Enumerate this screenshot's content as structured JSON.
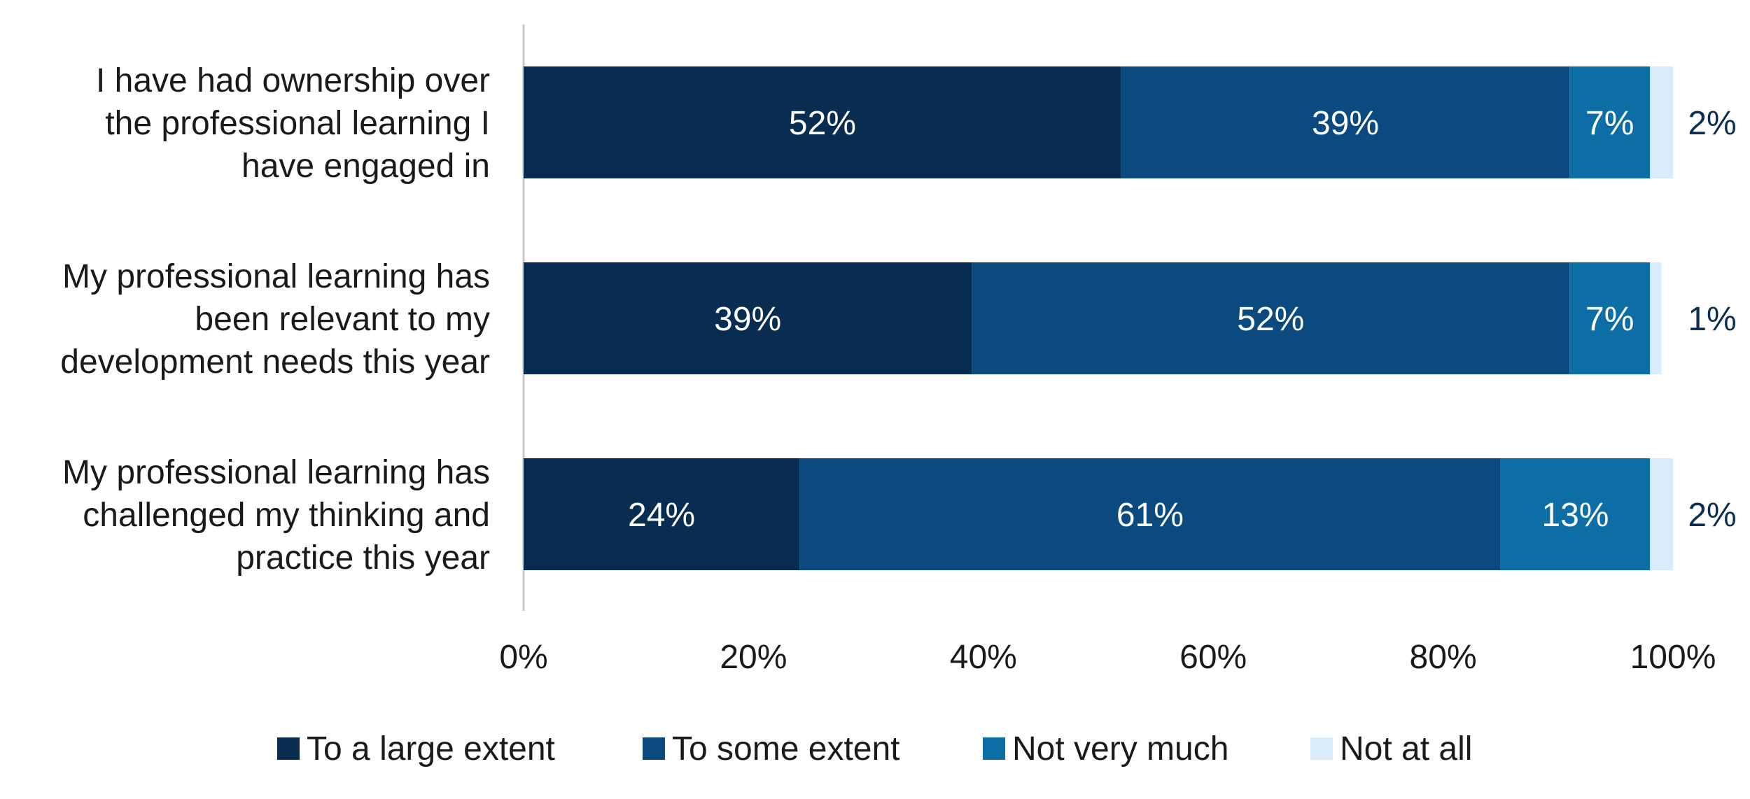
{
  "chart_data": {
    "type": "bar",
    "orientation": "horizontal",
    "stacked": true,
    "categories": [
      "I have had ownership over the professional learning I have engaged in",
      "My professional learning has been relevant to my development needs this year",
      "My professional learning has challenged my thinking and practice this year"
    ],
    "category_lines": [
      [
        "I have had ownership over",
        "the professional learning I",
        "have engaged in"
      ],
      [
        "My professional learning has",
        "been relevant to my",
        "development needs this year"
      ],
      [
        "My professional learning has",
        "challenged my thinking and",
        "practice this year"
      ]
    ],
    "series": [
      {
        "name": "To a large extent",
        "values": [
          52,
          39,
          24
        ],
        "labels": [
          "52%",
          "39%",
          "24%"
        ]
      },
      {
        "name": "To some extent",
        "values": [
          39,
          52,
          61
        ],
        "labels": [
          "39%",
          "52%",
          "61%"
        ]
      },
      {
        "name": "Not very much",
        "values": [
          7,
          7,
          13
        ],
        "labels": [
          "7%",
          "7%",
          "13%"
        ]
      },
      {
        "name": "Not at all",
        "values": [
          2,
          1,
          2
        ],
        "labels": [
          "2%",
          "1%",
          "2%"
        ]
      }
    ],
    "colors": [
      "#082d50",
      "#0b4a7e",
      "#0d6ea6",
      "#d9ecfb"
    ],
    "xlim": [
      0,
      100
    ],
    "ticks": [
      "0%",
      "20%",
      "40%",
      "60%",
      "80%",
      "100%"
    ],
    "grid": false,
    "legend_position": "bottom",
    "title": "",
    "xlabel": "",
    "ylabel": ""
  }
}
